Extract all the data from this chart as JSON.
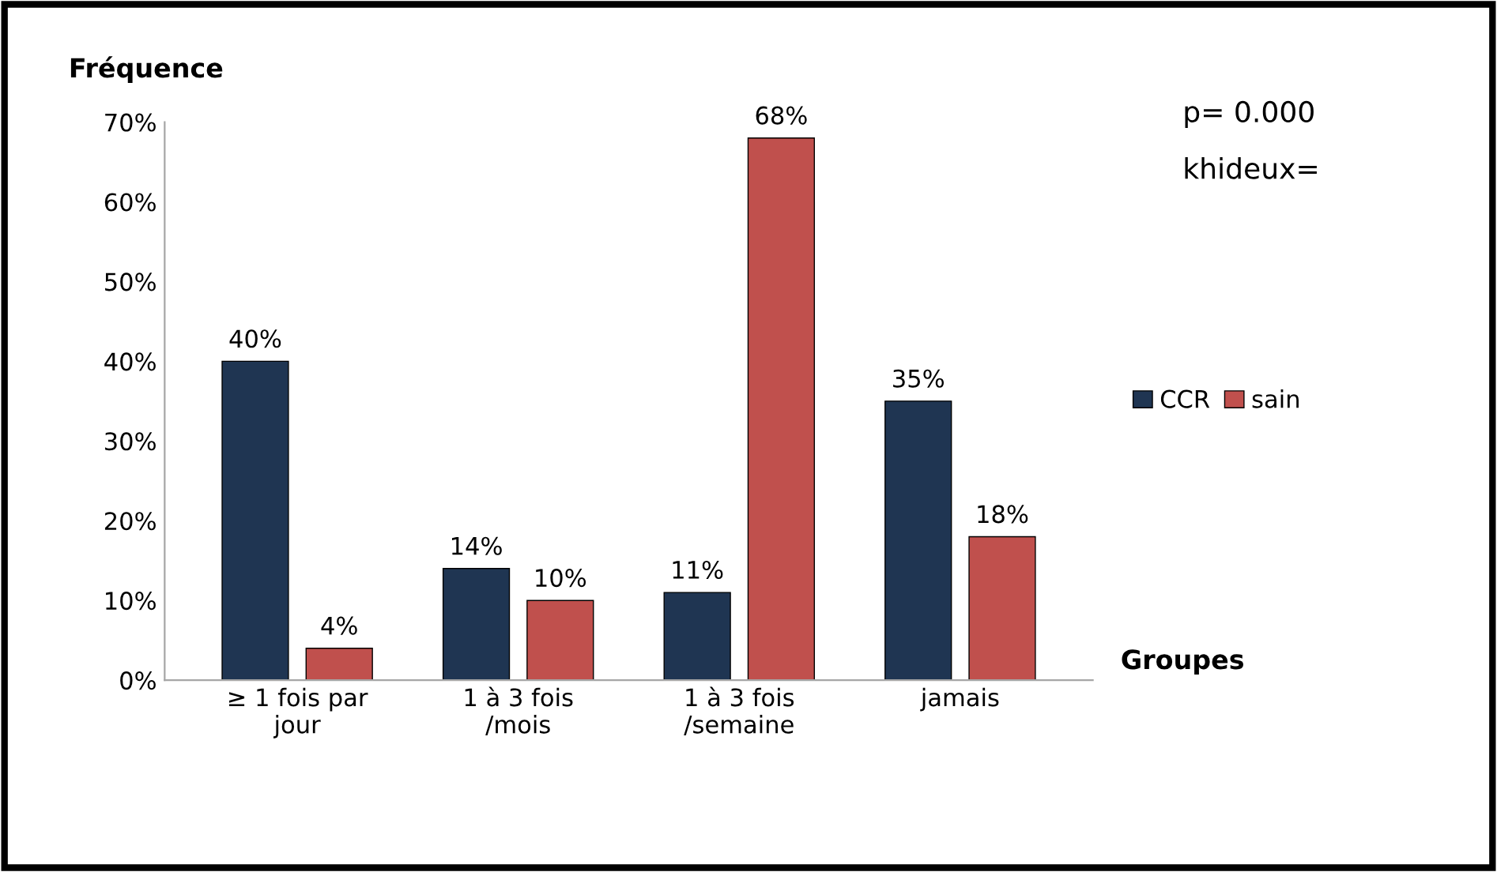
{
  "chart_data": {
    "type": "bar",
    "ylabel": "Fréquence",
    "xlabel": "Groupes",
    "categories": [
      "≥ 1 fois par\njour",
      "1 à 3 fois\n/mois",
      "1 à 3 fois\n/semaine",
      "jamais"
    ],
    "series": [
      {
        "name": "CCR",
        "color": "#1f3552",
        "values": [
          40,
          14,
          11,
          35
        ],
        "value_labels": [
          "40%",
          "14%",
          "11%",
          "35%"
        ]
      },
      {
        "name": "sain",
        "color": "#c0504d",
        "values": [
          4,
          10,
          68,
          18
        ],
        "value_labels": [
          "4%",
          "10%",
          "68%",
          "18%"
        ]
      }
    ],
    "ylim": [
      0,
      70
    ],
    "yticks": [
      {
        "value": 0,
        "label": "0%"
      },
      {
        "value": 10,
        "label": "10%"
      },
      {
        "value": 20,
        "label": "20%"
      },
      {
        "value": 30,
        "label": "30%"
      },
      {
        "value": 40,
        "label": "40%"
      },
      {
        "value": 50,
        "label": "50%"
      },
      {
        "value": 60,
        "label": "60%"
      },
      {
        "value": 70,
        "label": "70%"
      }
    ],
    "legend": "right",
    "grid": false,
    "annotations": [
      "p= 0.000",
      "khideux="
    ]
  }
}
